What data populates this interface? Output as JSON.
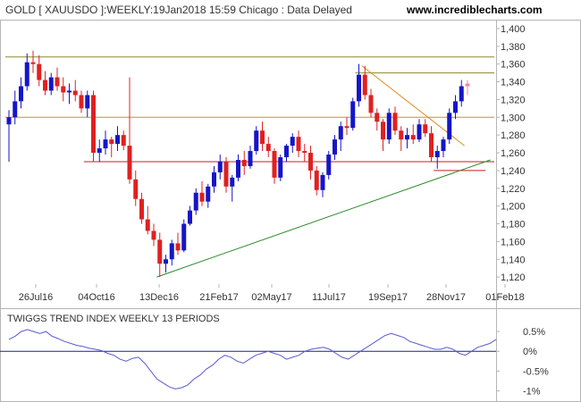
{
  "header": {
    "title": "GOLD [ XAUUSDO ]:WEEKLY:19Jan2018 15:59 Chicago : Data Delayed",
    "site": "www.incrediblecharts.com"
  },
  "colors": {
    "up": "#1515c8",
    "down": "#e02020",
    "last": "#f08a96",
    "hline_olive": "#8a8a2a",
    "hline_orange": "#e08a1e",
    "hline_red": "#c81e1e",
    "trend_green": "#2a8a2a",
    "trend_orange": "#d06a16",
    "indicator": "#5a5ad0",
    "zero": "#1f1f8f"
  },
  "chart_data": [
    {
      "type": "candlestick",
      "title": "GOLD [ XAUUSDO ]:WEEKLY:19Jan2018 15:59 Chicago : Data Delayed",
      "ylim": [
        1100,
        1410
      ],
      "yticks": [
        "1,120",
        "1,140",
        "1,160",
        "1,180",
        "1,200",
        "1,220",
        "1,240",
        "1,260",
        "1,280",
        "1,300",
        "1,320",
        "1,340",
        "1,360",
        "1,380",
        "1,400"
      ],
      "xtick_labels": [
        "26Jul16",
        "04Oct16",
        "13Dec16",
        "21Feb17",
        "02May17",
        "11Jul17",
        "19Sep17",
        "28Nov17",
        "01Feb18"
      ],
      "grid": false,
      "ohlc": [
        [
          1292,
          1308,
          1250,
          1300
        ],
        [
          1300,
          1330,
          1292,
          1318
        ],
        [
          1318,
          1345,
          1310,
          1335
        ],
        [
          1335,
          1372,
          1330,
          1362
        ],
        [
          1362,
          1375,
          1350,
          1360
        ],
        [
          1360,
          1370,
          1335,
          1342
        ],
        [
          1342,
          1352,
          1325,
          1330
        ],
        [
          1330,
          1350,
          1325,
          1345
        ],
        [
          1345,
          1356,
          1330,
          1335
        ],
        [
          1335,
          1345,
          1318,
          1328
        ],
        [
          1328,
          1338,
          1315,
          1330
        ],
        [
          1330,
          1342,
          1318,
          1325
        ],
        [
          1325,
          1330,
          1305,
          1310
        ],
        [
          1310,
          1330,
          1300,
          1325
        ],
        [
          1325,
          1330,
          1250,
          1260
        ],
        [
          1260,
          1275,
          1250,
          1265
        ],
        [
          1265,
          1285,
          1258,
          1275
        ],
        [
          1275,
          1278,
          1255,
          1270
        ],
        [
          1270,
          1290,
          1262,
          1280
        ],
        [
          1280,
          1285,
          1263,
          1268
        ],
        [
          1268,
          1345,
          1225,
          1230
        ],
        [
          1230,
          1240,
          1200,
          1208
        ],
        [
          1208,
          1215,
          1180,
          1185
        ],
        [
          1185,
          1200,
          1168,
          1172
        ],
        [
          1172,
          1180,
          1155,
          1162
        ],
        [
          1162,
          1170,
          1120,
          1135
        ],
        [
          1135,
          1145,
          1125,
          1140
        ],
        [
          1140,
          1162,
          1133,
          1158
        ],
        [
          1158,
          1170,
          1145,
          1150
        ],
        [
          1150,
          1185,
          1148,
          1180
        ],
        [
          1180,
          1200,
          1178,
          1195
        ],
        [
          1195,
          1220,
          1190,
          1215
        ],
        [
          1215,
          1228,
          1200,
          1205
        ],
        [
          1205,
          1225,
          1198,
          1222
        ],
        [
          1222,
          1245,
          1215,
          1238
        ],
        [
          1238,
          1258,
          1230,
          1250
        ],
        [
          1250,
          1255,
          1215,
          1222
        ],
        [
          1222,
          1235,
          1205,
          1232
        ],
        [
          1232,
          1258,
          1228,
          1252
        ],
        [
          1252,
          1262,
          1235,
          1245
        ],
        [
          1245,
          1268,
          1242,
          1262
        ],
        [
          1262,
          1290,
          1258,
          1285
        ],
        [
          1285,
          1295,
          1262,
          1270
        ],
        [
          1270,
          1278,
          1255,
          1262
        ],
        [
          1262,
          1265,
          1225,
          1232
        ],
        [
          1232,
          1258,
          1228,
          1255
        ],
        [
          1255,
          1270,
          1250,
          1268
        ],
        [
          1268,
          1282,
          1260,
          1278
        ],
        [
          1278,
          1285,
          1255,
          1262
        ],
        [
          1262,
          1270,
          1250,
          1260
        ],
        [
          1260,
          1268,
          1230,
          1240
        ],
        [
          1240,
          1245,
          1212,
          1218
        ],
        [
          1218,
          1238,
          1210,
          1235
        ],
        [
          1235,
          1262,
          1230,
          1258
        ],
        [
          1258,
          1280,
          1252,
          1275
        ],
        [
          1275,
          1295,
          1262,
          1290
        ],
        [
          1290,
          1300,
          1280,
          1288
        ],
        [
          1288,
          1322,
          1285,
          1318
        ],
        [
          1318,
          1360,
          1312,
          1348
        ],
        [
          1348,
          1358,
          1320,
          1325
        ],
        [
          1325,
          1332,
          1300,
          1305
        ],
        [
          1305,
          1310,
          1285,
          1295
        ],
        [
          1295,
          1298,
          1262,
          1275
        ],
        [
          1275,
          1310,
          1270,
          1305
        ],
        [
          1305,
          1312,
          1280,
          1285
        ],
        [
          1285,
          1290,
          1262,
          1275
        ],
        [
          1275,
          1288,
          1265,
          1280
        ],
        [
          1280,
          1292,
          1270,
          1275
        ],
        [
          1275,
          1298,
          1272,
          1292
        ],
        [
          1292,
          1298,
          1278,
          1282
        ],
        [
          1282,
          1290,
          1250,
          1255
        ],
        [
          1255,
          1268,
          1242,
          1262
        ],
        [
          1262,
          1278,
          1255,
          1275
        ],
        [
          1275,
          1310,
          1270,
          1305
        ],
        [
          1305,
          1325,
          1298,
          1318
        ],
        [
          1318,
          1342,
          1312,
          1335
        ],
        [
          1335,
          1342,
          1325,
          1338
        ]
      ],
      "last_bar_index": 76,
      "horizontal_lines": [
        {
          "y": 1368,
          "x_from": 0,
          "x_to": 81,
          "color": "olive"
        },
        {
          "y": 1350,
          "x_from": 58,
          "x_to": 81,
          "color": "olive"
        },
        {
          "y": 1300,
          "x_from": 0,
          "x_to": 81,
          "color": "orange"
        },
        {
          "y": 1250,
          "x_from": 13,
          "x_to": 81,
          "color": "red"
        },
        {
          "y": 1240,
          "x_from": 71,
          "x_to": 79,
          "color": "red"
        }
      ],
      "trendlines": [
        {
          "x1": 24.5,
          "y1": 1120,
          "x2": 79.8,
          "y2": 1252,
          "color": "green"
        },
        {
          "x1": 58.5,
          "y1": 1358,
          "x2": 75.5,
          "y2": 1268,
          "color": "orange"
        }
      ]
    },
    {
      "type": "line",
      "title": "TWIGGS TREND INDEX WEEKLY 13 PERIODS",
      "ylim": [
        -1.1,
        0.75
      ],
      "yticks": [
        "0.5%",
        "0%",
        "-0.5%",
        "-1%"
      ],
      "zero_line": 0,
      "values": [
        0.3,
        0.38,
        0.5,
        0.55,
        0.5,
        0.45,
        0.5,
        0.38,
        0.32,
        0.25,
        0.2,
        0.15,
        0.12,
        0.08,
        0.05,
        0.02,
        -0.05,
        -0.1,
        -0.2,
        -0.25,
        -0.18,
        -0.15,
        -0.3,
        -0.5,
        -0.7,
        -0.8,
        -0.9,
        -0.95,
        -0.92,
        -0.85,
        -0.7,
        -0.6,
        -0.45,
        -0.35,
        -0.2,
        -0.1,
        -0.15,
        -0.25,
        -0.3,
        -0.2,
        -0.1,
        -0.05,
        0.0,
        -0.05,
        -0.1,
        -0.2,
        -0.15,
        -0.1,
        0.0,
        0.05,
        0.08,
        0.1,
        0.05,
        -0.05,
        -0.15,
        -0.2,
        -0.1,
        0.0,
        0.1,
        0.2,
        0.3,
        0.4,
        0.45,
        0.4,
        0.35,
        0.25,
        0.2,
        0.15,
        0.1,
        0.05,
        0.05,
        0.1,
        0.05,
        -0.05,
        -0.1,
        0.0,
        0.1,
        0.15,
        0.2,
        0.3
      ]
    }
  ]
}
